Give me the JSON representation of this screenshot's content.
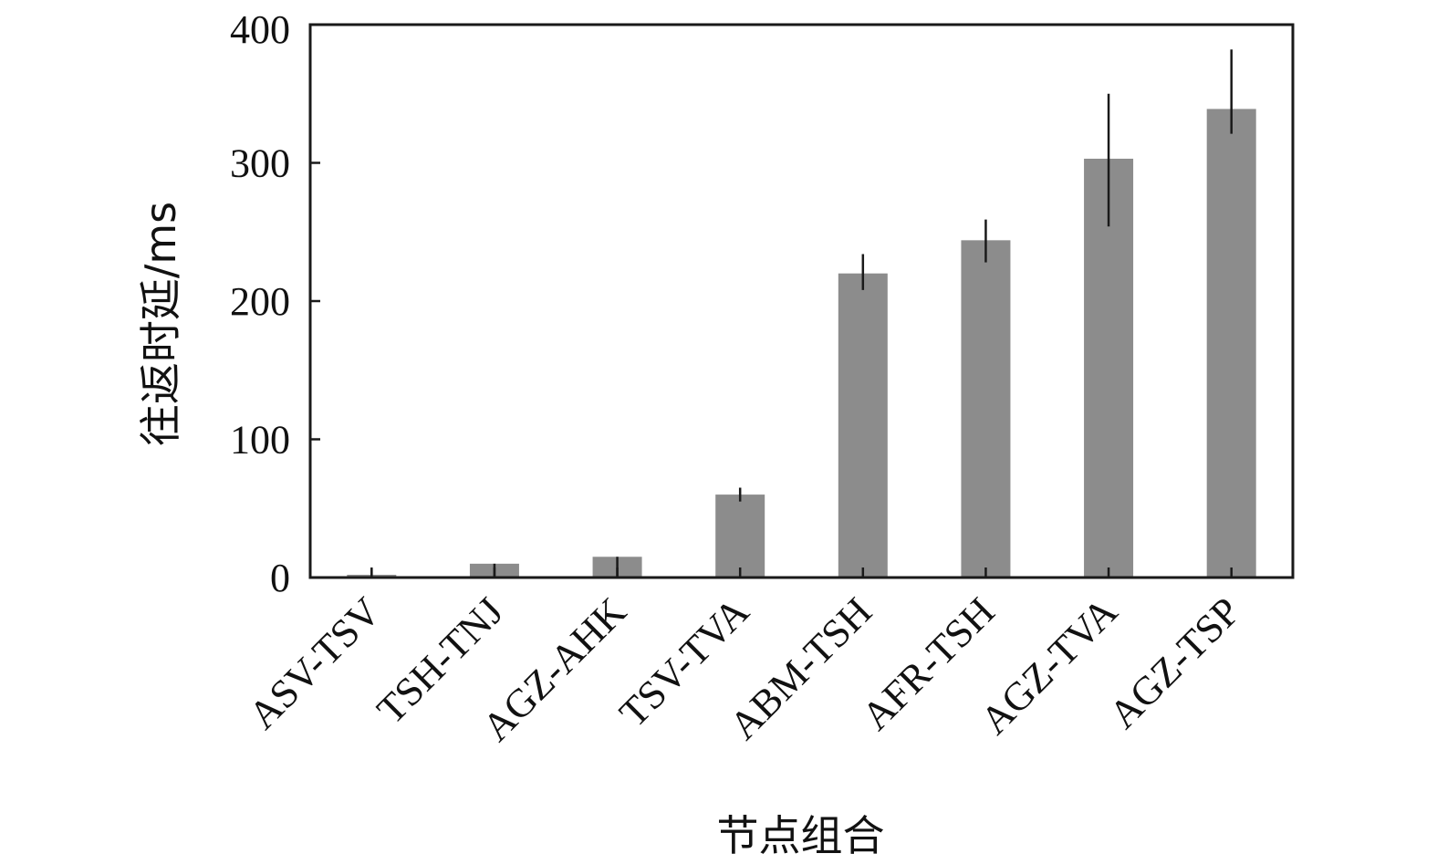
{
  "chart_data": {
    "type": "bar",
    "title": "",
    "xlabel": "节点组合",
    "ylabel": "往返时延/ms",
    "categories": [
      "ASV-TSV",
      "TSH-TNJ",
      "AGZ-AHK",
      "TSV-TVA",
      "ABM-TSH",
      "AFR-TSH",
      "AGZ-TVA",
      "AGZ-TSP"
    ],
    "series": [
      {
        "values": [
          2,
          10,
          15,
          60,
          220,
          244,
          303,
          339
        ],
        "error_low": [
          0,
          0,
          0,
          55,
          208,
          228,
          254,
          321
        ],
        "error_high": [
          6,
          10,
          15,
          65,
          234,
          259,
          350,
          382
        ]
      }
    ],
    "ylim": [
      0,
      400
    ],
    "yticks": [
      0,
      100,
      200,
      300,
      400
    ],
    "grid": false,
    "legend": "none",
    "bar_color": "#8c8c8c",
    "error_bar_color": "#1a1a1a",
    "axis_color": "#1a1a1a"
  }
}
